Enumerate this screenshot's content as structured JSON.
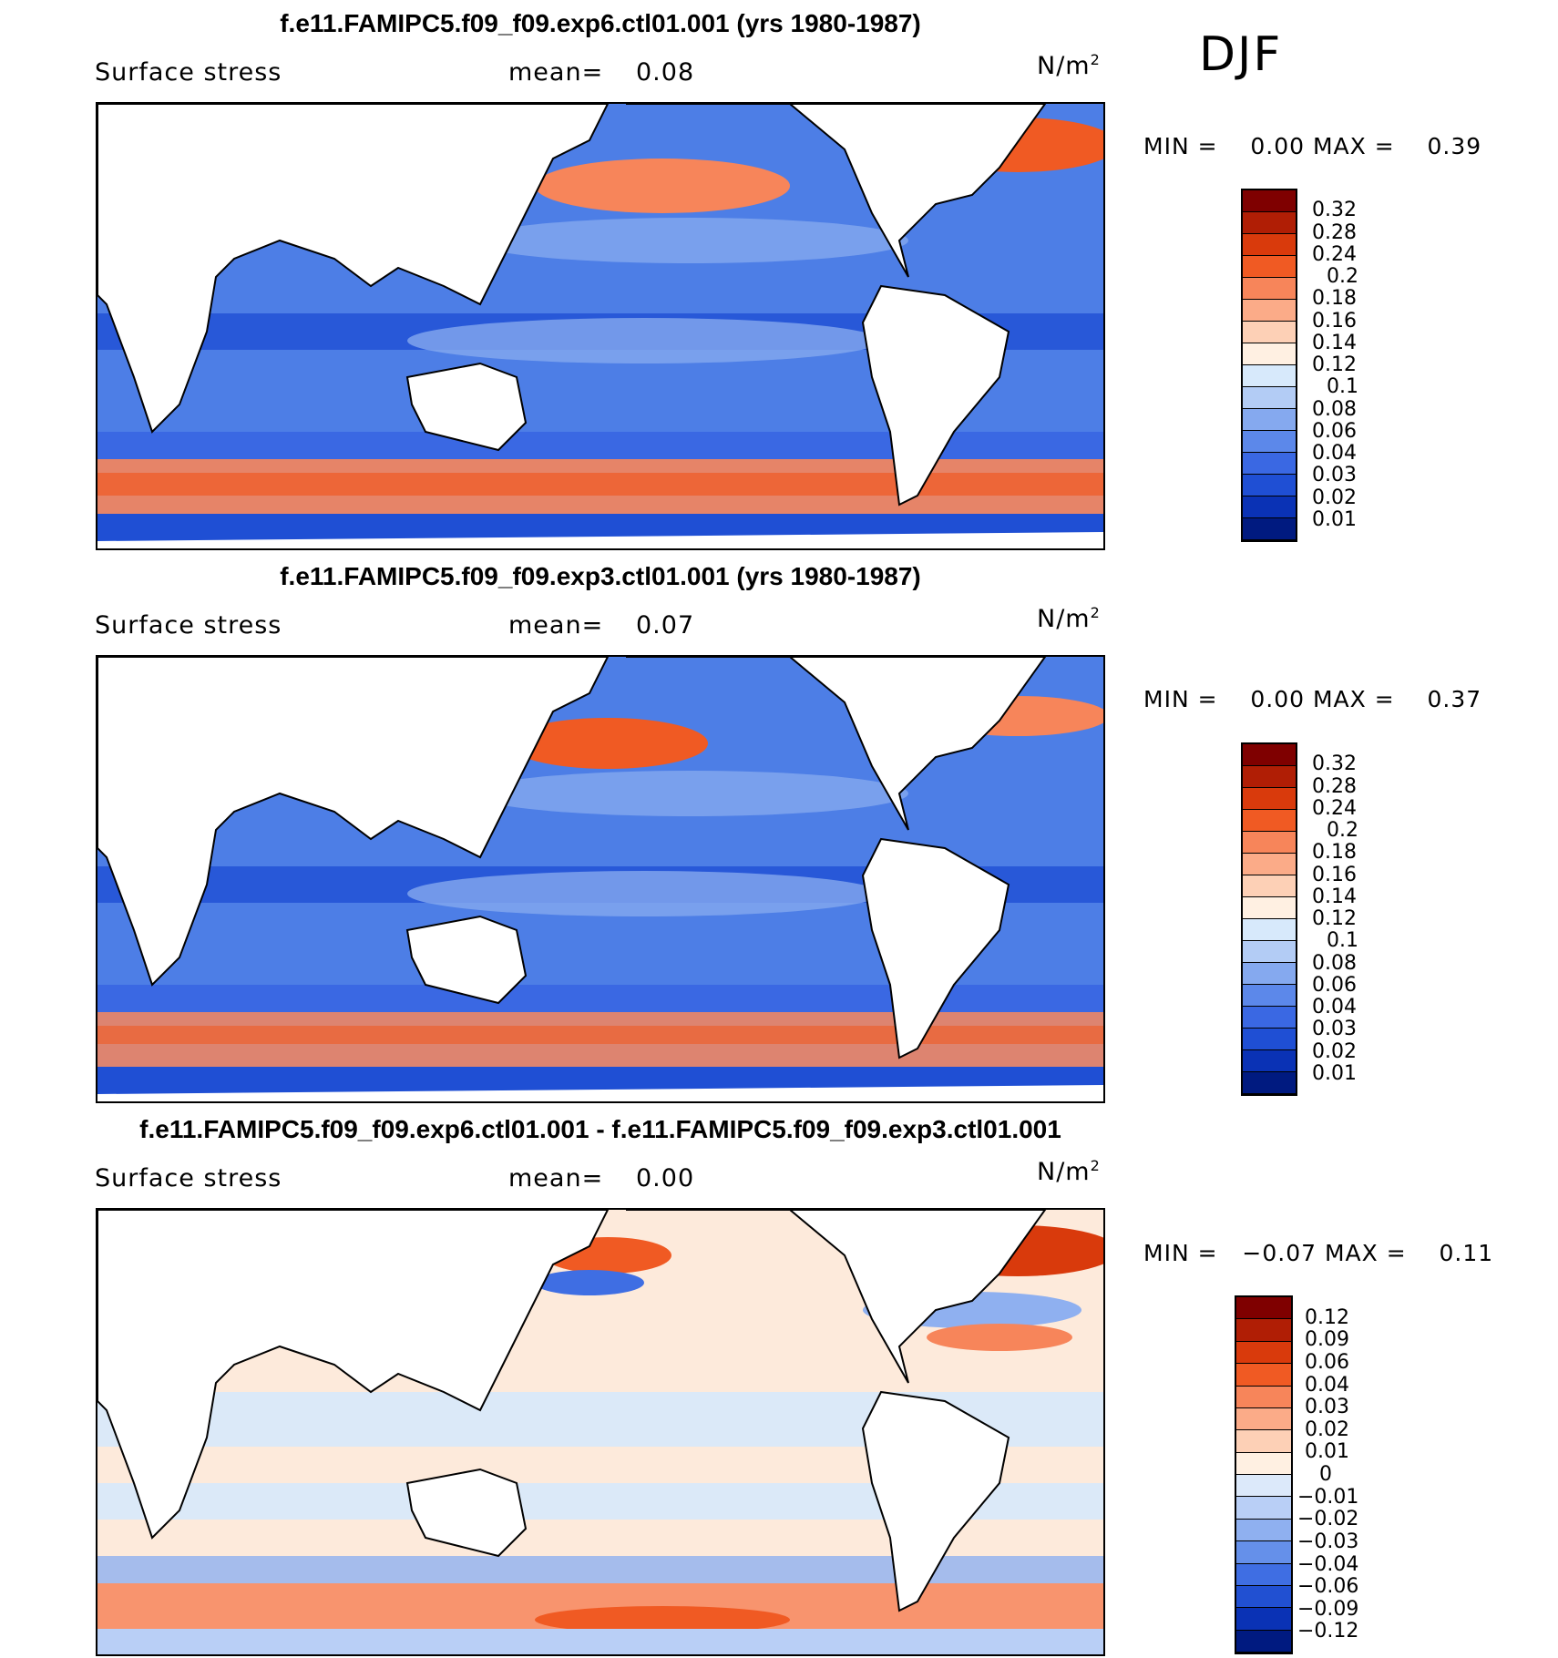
{
  "season": "DJF",
  "panels": [
    {
      "title": "f.e11.FAMIPC5.f09_f09.exp6.ctl01.001 (yrs 1980-1987)",
      "variable": "Surface stress",
      "mean_label": "mean=",
      "mean_value": "0.08",
      "units": "N/m",
      "units_sup": "2",
      "min_label": "MIN =",
      "min_value": "0.00",
      "max_label": "MAX =",
      "max_value": "0.39",
      "colorbar": {
        "levels": [
          "0.32",
          "0.28",
          "0.24",
          "0.2",
          "0.18",
          "0.16",
          "0.14",
          "0.12",
          "0.1",
          "0.08",
          "0.06",
          "0.04",
          "0.03",
          "0.02",
          "0.01"
        ],
        "colors": [
          "#7f0000",
          "#b01e05",
          "#d93a0c",
          "#f05a23",
          "#f7855a",
          "#fbab88",
          "#fdd0b6",
          "#fff0e2",
          "#d7e9fb",
          "#b3ccf5",
          "#85a9ef",
          "#5c88ea",
          "#3a68e3",
          "#1f4fd4",
          "#0a32b5",
          "#001a80"
        ]
      }
    },
    {
      "title": "f.e11.FAMIPC5.f09_f09.exp3.ctl01.001 (yrs 1980-1987)",
      "variable": "Surface stress",
      "mean_label": "mean=",
      "mean_value": "0.07",
      "units": "N/m",
      "units_sup": "2",
      "min_label": "MIN =",
      "min_value": "0.00",
      "max_label": "MAX =",
      "max_value": "0.37",
      "colorbar": {
        "levels": [
          "0.32",
          "0.28",
          "0.24",
          "0.2",
          "0.18",
          "0.16",
          "0.14",
          "0.12",
          "0.1",
          "0.08",
          "0.06",
          "0.04",
          "0.03",
          "0.02",
          "0.01"
        ],
        "colors": [
          "#7f0000",
          "#b01e05",
          "#d93a0c",
          "#f05a23",
          "#f7855a",
          "#fbab88",
          "#fdd0b6",
          "#fff0e2",
          "#d7e9fb",
          "#b3ccf5",
          "#85a9ef",
          "#5c88ea",
          "#3a68e3",
          "#1f4fd4",
          "#0a32b5",
          "#001a80"
        ]
      }
    },
    {
      "title": "f.e11.FAMIPC5.f09_f09.exp6.ctl01.001 - f.e11.FAMIPC5.f09_f09.exp3.ctl01.001",
      "variable": "Surface stress",
      "mean_label": "mean=",
      "mean_value": "0.00",
      "units": "N/m",
      "units_sup": "2",
      "min_label": "MIN =",
      "min_value": "−0.07",
      "max_label": "MAX =",
      "max_value": "0.11",
      "colorbar": {
        "levels": [
          "0.12",
          "0.09",
          "0.06",
          "0.04",
          "0.03",
          "0.02",
          "0.01",
          "0",
          "−0.01",
          "−0.02",
          "−0.03",
          "−0.04",
          "−0.06",
          "−0.09",
          "−0.12"
        ],
        "colors": [
          "#7f0000",
          "#b01e05",
          "#d93a0c",
          "#f05a23",
          "#f7855a",
          "#fbab88",
          "#fdd0b6",
          "#fff0e2",
          "#dce9fa",
          "#b9cff6",
          "#8fb0f0",
          "#6590ea",
          "#3f6ee3",
          "#2150d2",
          "#0a32b5",
          "#001a80"
        ]
      }
    }
  ]
}
